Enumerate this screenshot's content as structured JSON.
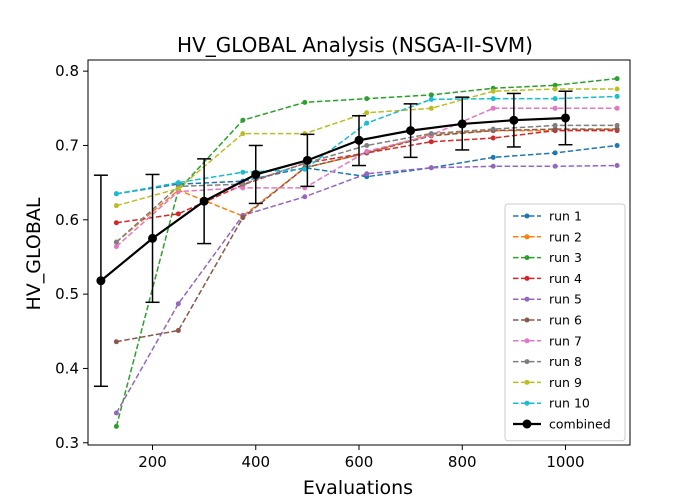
{
  "chart_data": {
    "type": "line",
    "title": "HV_GLOBAL Analysis (NSGA-II-SVM)",
    "xlabel": "Evaluations",
    "ylabel": "HV_GLOBAL",
    "xlim": [
      75,
      1125
    ],
    "ylim": [
      0.297,
      0.815
    ],
    "xticks": [
      200,
      400,
      600,
      800,
      1000
    ],
    "yticks": [
      0.3,
      0.4,
      0.5,
      0.6,
      0.7,
      0.8
    ],
    "grid": false,
    "legend_position": "lower-right",
    "x": [
      130,
      250,
      375,
      495,
      615,
      740,
      860,
      980,
      1100
    ],
    "series": [
      {
        "name": "run 1",
        "color": "#1f77b4",
        "values": [
          0.635,
          0.648,
          0.652,
          0.67,
          0.658,
          0.67,
          0.684,
          0.69,
          0.7
        ]
      },
      {
        "name": "run 2",
        "color": "#ff7f0e",
        "values": [
          0.57,
          0.64,
          0.605,
          0.67,
          0.69,
          0.715,
          0.72,
          0.72,
          0.722
        ]
      },
      {
        "name": "run 3",
        "color": "#2ca02c",
        "values": [
          0.322,
          0.64,
          0.734,
          0.758,
          0.763,
          0.768,
          0.777,
          0.781,
          0.79
        ]
      },
      {
        "name": "run 4",
        "color": "#d62728",
        "values": [
          0.596,
          0.608,
          0.647,
          0.676,
          0.69,
          0.705,
          0.71,
          0.72,
          0.72
        ]
      },
      {
        "name": "run 5",
        "color": "#9467bd",
        "values": [
          0.34,
          0.487,
          0.606,
          0.631,
          0.662,
          0.67,
          0.672,
          0.672,
          0.673
        ]
      },
      {
        "name": "run 6",
        "color": "#8c564b",
        "values": [
          0.436,
          0.451,
          0.603,
          0.67,
          0.69,
          0.713,
          0.72,
          0.722,
          0.722
        ]
      },
      {
        "name": "run 7",
        "color": "#e377c2",
        "values": [
          0.564,
          0.638,
          0.643,
          0.643,
          0.692,
          0.714,
          0.75,
          0.75,
          0.75
        ]
      },
      {
        "name": "run 8",
        "color": "#7f7f7f",
        "values": [
          0.57,
          0.645,
          0.648,
          0.676,
          0.7,
          0.716,
          0.722,
          0.727,
          0.727
        ]
      },
      {
        "name": "run 9",
        "color": "#bcbd22",
        "values": [
          0.619,
          0.642,
          0.716,
          0.716,
          0.744,
          0.75,
          0.773,
          0.776,
          0.776
        ]
      },
      {
        "name": "run 10",
        "color": "#17becf",
        "values": [
          0.635,
          0.65,
          0.664,
          0.668,
          0.73,
          0.762,
          0.763,
          0.763,
          0.766
        ]
      }
    ],
    "combined": {
      "name": "combined",
      "color": "#000000",
      "x": [
        100,
        200,
        300,
        400,
        500,
        600,
        700,
        800,
        900,
        1000
      ],
      "values": [
        0.518,
        0.575,
        0.625,
        0.661,
        0.68,
        0.707,
        0.72,
        0.729,
        0.734,
        0.737
      ],
      "err_low": [
        0.376,
        0.489,
        0.568,
        0.622,
        0.645,
        0.673,
        0.684,
        0.694,
        0.698,
        0.701
      ],
      "err_high": [
        0.66,
        0.661,
        0.682,
        0.7,
        0.715,
        0.74,
        0.756,
        0.765,
        0.77,
        0.773
      ]
    }
  }
}
